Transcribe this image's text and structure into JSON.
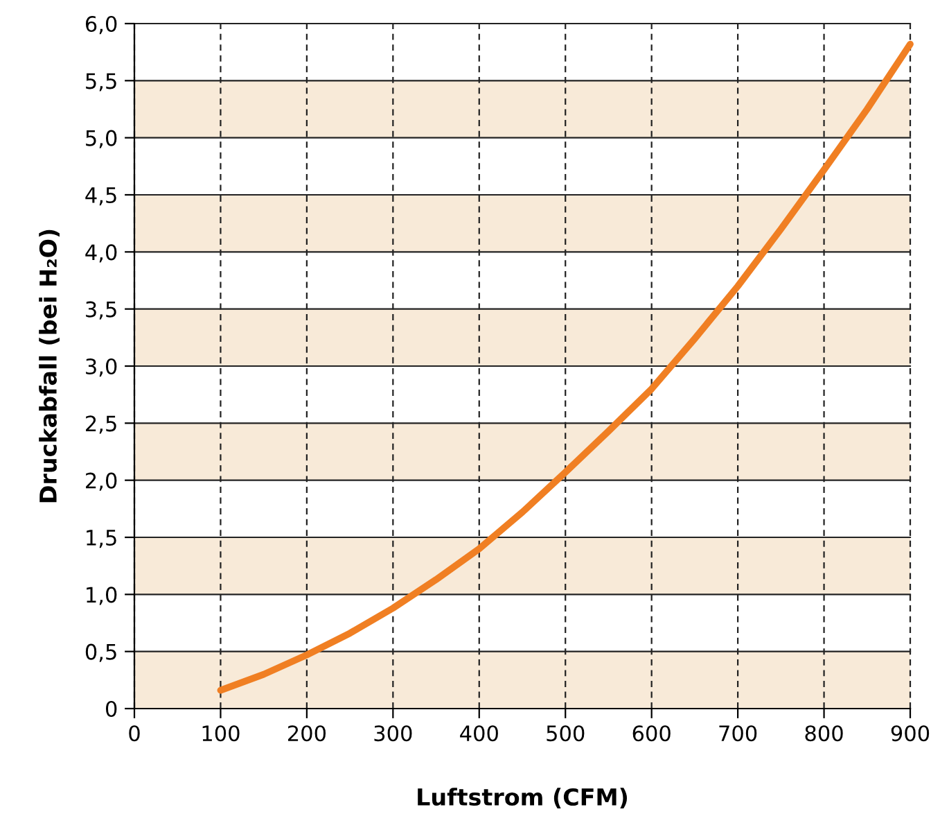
{
  "chart_data": {
    "type": "line",
    "xlabel": "Luftstrom (CFM)",
    "ylabel": "Druckabfall (bei H₂O)",
    "xlim": [
      0,
      900
    ],
    "xticks": [
      0,
      100,
      200,
      300,
      400,
      500,
      600,
      700,
      800,
      900
    ],
    "ylim": [
      0,
      6
    ],
    "yticks": [
      0,
      {
        "value": 0.5,
        "label": "0,5"
      },
      {
        "value": 1,
        "label": "1,0"
      },
      {
        "value": 1.5,
        "label": "1,5"
      },
      {
        "value": 2,
        "label": "2,0"
      },
      {
        "value": 2.5,
        "label": "2,5"
      },
      {
        "value": 3,
        "label": "3,0"
      },
      {
        "value": 3.5,
        "label": "3,5"
      },
      {
        "value": 4,
        "label": "4,0"
      },
      {
        "value": 4.5,
        "label": "4,5"
      },
      {
        "value": 5,
        "label": "5,0"
      },
      {
        "value": 5.5,
        "label": "5,5"
      },
      {
        "value": 6,
        "label": "6,0"
      }
    ],
    "grid": true,
    "legend": false,
    "marker": "none",
    "line_style": "solid",
    "bands": [
      {
        "axis": "y",
        "from": 0,
        "to": 0.5,
        "color": "#f8ead8"
      },
      {
        "axis": "y",
        "from": 1,
        "to": 1.5,
        "color": "#f8ead8"
      },
      {
        "axis": "y",
        "from": 2,
        "to": 2.5,
        "color": "#f8ead8"
      },
      {
        "axis": "y",
        "from": 3,
        "to": 3.5,
        "color": "#f8ead8"
      },
      {
        "axis": "y",
        "from": 4,
        "to": 4.5,
        "color": "#f8ead8"
      },
      {
        "axis": "y",
        "from": 5,
        "to": 5.5,
        "color": "#f8ead8"
      }
    ],
    "series": [
      {
        "color": "#f07f23",
        "x": [
          100,
          150,
          200,
          250,
          300,
          350,
          400,
          450,
          500,
          550,
          600,
          650,
          700,
          750,
          800,
          850,
          900
        ],
        "values": [
          0.16,
          0.3,
          0.47,
          0.66,
          0.88,
          1.13,
          1.4,
          1.72,
          2.07,
          2.43,
          2.8,
          3.24,
          3.7,
          4.2,
          4.72,
          5.25,
          5.82
        ]
      }
    ]
  }
}
